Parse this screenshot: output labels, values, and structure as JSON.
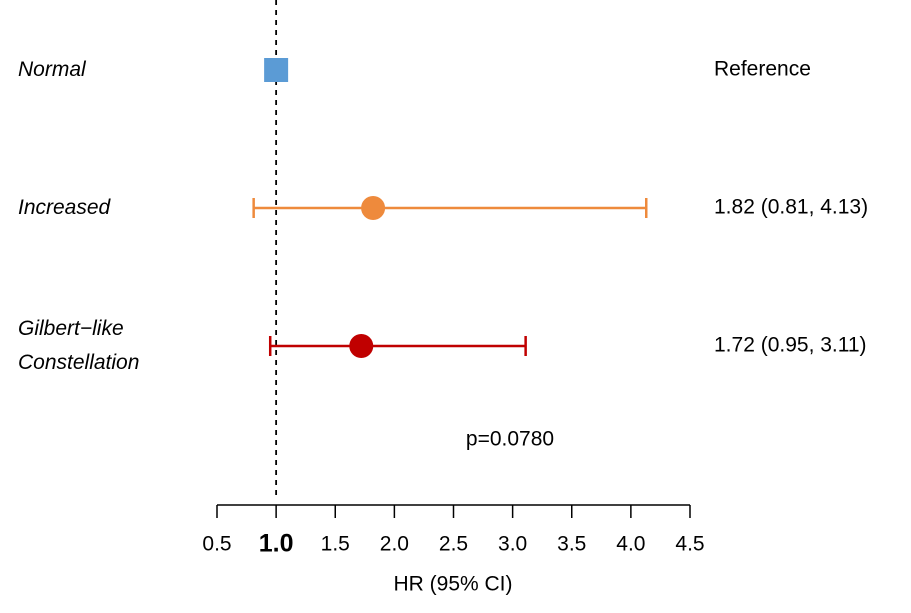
{
  "chart_data": {
    "type": "forest",
    "categories": [
      "Normal",
      "Increased",
      "Gilbert−like\nConstellation"
    ],
    "values": [
      1,
      1.82,
      1.72
    ],
    "lower": [
      null,
      0.81,
      0.95
    ],
    "upper": [
      null,
      4.13,
      3.11
    ],
    "value_labels": [
      "Reference",
      "1.82 (0.81, 4.13)",
      "1.72 (0.95, 3.11)"
    ],
    "markers": [
      "square",
      "circle",
      "circle"
    ],
    "colors": [
      "#5b9bd5",
      "#ee8a3c",
      "#c00000"
    ],
    "reference_line": 1,
    "annotation": "p=0.0780",
    "xlabel": "HR (95% CI)",
    "xlim": [
      0.5,
      4.5
    ],
    "xticks": [
      0.5,
      {
        "value": 1,
        "label": "1.0"
      },
      1.5,
      {
        "value": 2,
        "label": "2.0"
      },
      2.5,
      {
        "value": 3,
        "label": "3.0"
      },
      3.5,
      {
        "value": 4,
        "label": "4.0"
      },
      4.5
    ]
  }
}
